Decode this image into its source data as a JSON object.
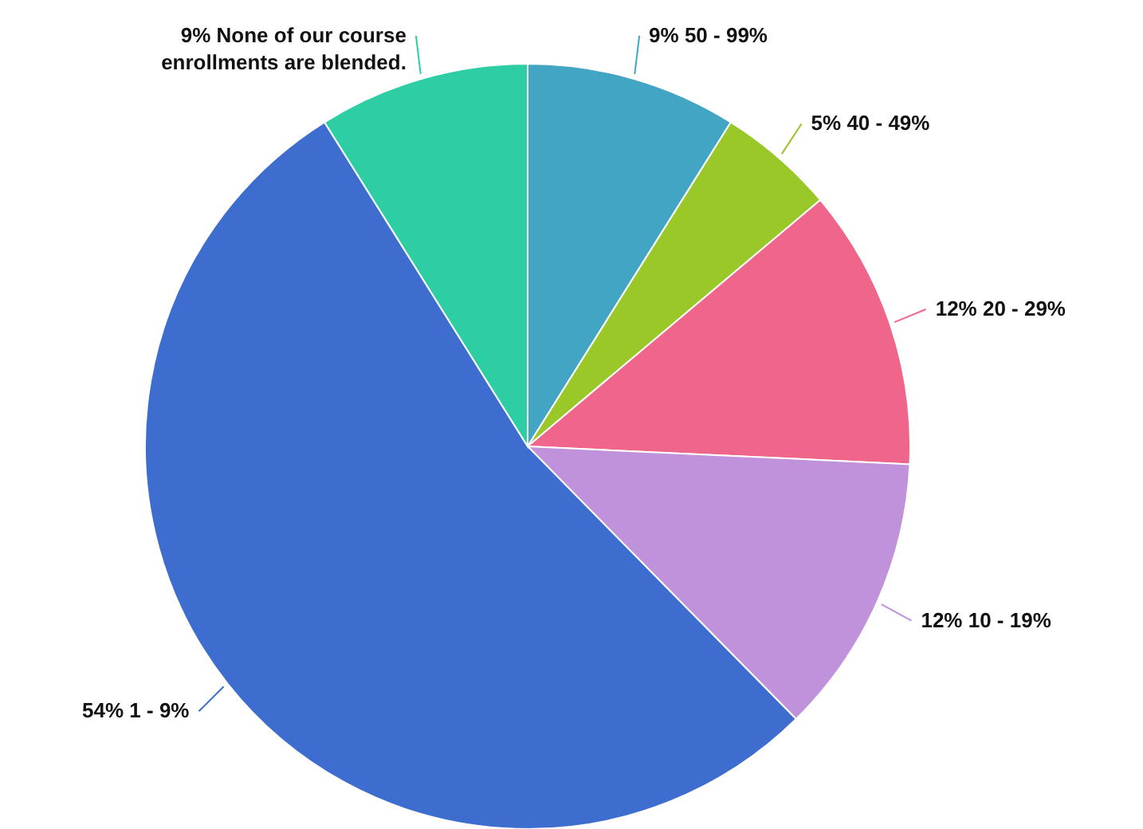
{
  "chart_data": {
    "type": "pie",
    "categories": [
      "50 - 99%",
      "40 - 49%",
      "20 - 29%",
      "10 - 19%",
      "1 - 9%",
      "None of our course enrollments are blended."
    ],
    "values": [
      9,
      5,
      12,
      12,
      54,
      9
    ],
    "value_labels": [
      "9%",
      "5%",
      "12%",
      "12%",
      "54%",
      "9%"
    ],
    "colors": [
      "#42a5c4",
      "#99c828",
      "#f0668a",
      "#c092dc",
      "#3d6ecf",
      "#2dcea3"
    ]
  }
}
